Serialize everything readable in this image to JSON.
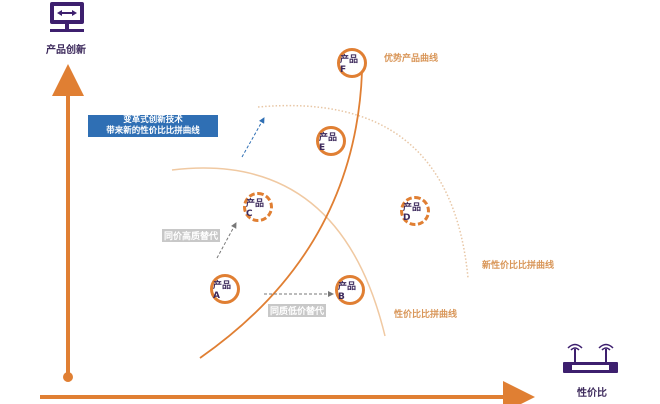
{
  "axes": {
    "y_label": "产品创新",
    "x_label": "性价比",
    "y_icon": "monitor-arrows-icon",
    "x_icon": "router-icon",
    "axis_color": "#e07f33"
  },
  "callout": {
    "line1": "变革式创新技术",
    "line2": "带来新的性价比比拼曲线",
    "color": "#2f6fb4"
  },
  "curves": {
    "advantage": "优势产品曲线",
    "new_comparison": "新性价比比拼曲线",
    "comparison": "性价比比拼曲线"
  },
  "transitions": {
    "same_price_higher_quality": "同价高质替代",
    "same_quality_lower_price": "同质低价替代"
  },
  "products": {
    "A": "产品A",
    "B": "产品B",
    "C": "产品C",
    "D": "产品D",
    "E": "产品E",
    "F": "产品F"
  },
  "colors": {
    "accent": "#e07f33",
    "text": "#3d2a5c",
    "curve_label": "#d9975a"
  }
}
